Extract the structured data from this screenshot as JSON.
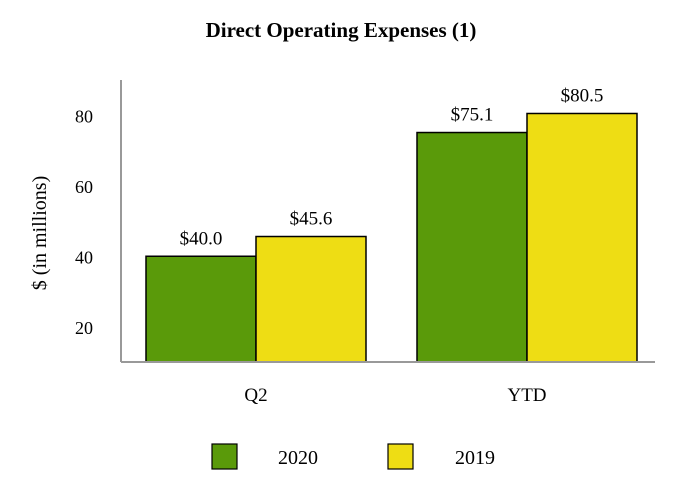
{
  "chart_data": {
    "type": "bar",
    "title": "Direct Operating Expenses (1)",
    "xlabel": "",
    "ylabel": "$ (in millions)",
    "categories": [
      "Q2",
      "YTD"
    ],
    "series": [
      {
        "name": "2020",
        "values": [
          40.0,
          75.1
        ],
        "labels": [
          "$40.0",
          "$75.1"
        ],
        "color": "#5a9a0a"
      },
      {
        "name": "2019",
        "values": [
          45.6,
          80.5
        ],
        "labels": [
          "$45.6",
          "$80.5"
        ],
        "color": "#eedd14"
      }
    ],
    "y_ticks": [
      20,
      40,
      60,
      80
    ],
    "ylim": [
      10,
      90
    ],
    "grid": false,
    "legend_position": "bottom"
  }
}
